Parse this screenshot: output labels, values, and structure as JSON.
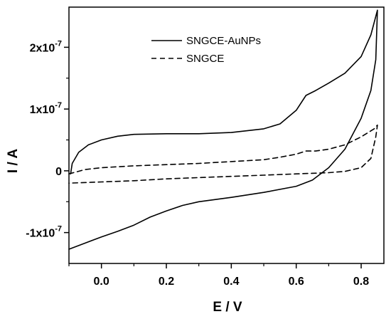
{
  "chart_data": {
    "type": "line",
    "title": "",
    "xlabel": "E / V",
    "ylabel": "I / A",
    "xlim": [
      -0.1,
      0.87
    ],
    "ylim": [
      -1.5e-07,
      2.65e-07
    ],
    "x_ticks": [
      {
        "value": 0.0,
        "label": "0.0"
      },
      {
        "value": 0.2,
        "label": "0.2"
      },
      {
        "value": 0.4,
        "label": "0.4"
      },
      {
        "value": 0.6,
        "label": "0.6"
      },
      {
        "value": 0.8,
        "label": "0.8"
      }
    ],
    "y_ticks": [
      {
        "value": -1e-07,
        "base": "-1x10",
        "exp": "-7"
      },
      {
        "value": 0,
        "base": "0",
        "exp": ""
      },
      {
        "value": 1e-07,
        "base": "1x10",
        "exp": "-7"
      },
      {
        "value": 2e-07,
        "base": "2x10",
        "exp": "-7"
      }
    ],
    "grid": false,
    "legend_position": "top-center",
    "series": [
      {
        "name": "SNGCE-AuNPs",
        "line_style": "solid",
        "color": "#000000",
        "points": [
          [
            -0.095,
            -5e-09
          ],
          [
            -0.09,
            1.2e-08
          ],
          [
            -0.07,
            3e-08
          ],
          [
            -0.04,
            4.2e-08
          ],
          [
            0.0,
            5e-08
          ],
          [
            0.05,
            5.6e-08
          ],
          [
            0.1,
            5.9e-08
          ],
          [
            0.2,
            6e-08
          ],
          [
            0.3,
            6e-08
          ],
          [
            0.4,
            6.2e-08
          ],
          [
            0.5,
            6.8e-08
          ],
          [
            0.55,
            7.6e-08
          ],
          [
            0.6,
            9.8e-08
          ],
          [
            0.63,
            1.22e-07
          ],
          [
            0.66,
            1.3e-07
          ],
          [
            0.7,
            1.42e-07
          ],
          [
            0.75,
            1.58e-07
          ],
          [
            0.8,
            1.85e-07
          ],
          [
            0.83,
            2.2e-07
          ],
          [
            0.85,
            2.6e-07
          ],
          [
            0.845,
            1.8e-07
          ],
          [
            0.83,
            1.3e-07
          ],
          [
            0.8,
            8.5e-08
          ],
          [
            0.75,
            3.5e-08
          ],
          [
            0.7,
            5e-09
          ],
          [
            0.65,
            -1.5e-08
          ],
          [
            0.6,
            -2.5e-08
          ],
          [
            0.5,
            -3.5e-08
          ],
          [
            0.4,
            -4.3e-08
          ],
          [
            0.3,
            -5e-08
          ],
          [
            0.25,
            -5.6e-08
          ],
          [
            0.2,
            -6.5e-08
          ],
          [
            0.15,
            -7.5e-08
          ],
          [
            0.1,
            -8.8e-08
          ],
          [
            0.05,
            -9.8e-08
          ],
          [
            0.0,
            -1.07e-07
          ],
          [
            -0.05,
            -1.17e-07
          ],
          [
            -0.1,
            -1.27e-07
          ]
        ]
      },
      {
        "name": "SNGCE",
        "line_style": "dashed",
        "color": "#000000",
        "points": [
          [
            -0.1,
            -5e-09
          ],
          [
            -0.05,
            2e-09
          ],
          [
            0.0,
            5e-09
          ],
          [
            0.1,
            8e-09
          ],
          [
            0.2,
            1e-08
          ],
          [
            0.3,
            1.2e-08
          ],
          [
            0.4,
            1.5e-08
          ],
          [
            0.5,
            1.8e-08
          ],
          [
            0.55,
            2.2e-08
          ],
          [
            0.6,
            2.7e-08
          ],
          [
            0.63,
            3.2e-08
          ],
          [
            0.66,
            3.2e-08
          ],
          [
            0.7,
            3.5e-08
          ],
          [
            0.75,
            4.2e-08
          ],
          [
            0.8,
            5.5e-08
          ],
          [
            0.84,
            6.8e-08
          ],
          [
            0.85,
            7.4e-08
          ],
          [
            0.845,
            5.5e-08
          ],
          [
            0.83,
            2e-08
          ],
          [
            0.8,
            5e-09
          ],
          [
            0.75,
            -1e-09
          ],
          [
            0.7,
            -3e-09
          ],
          [
            0.6,
            -5e-09
          ],
          [
            0.5,
            -7e-09
          ],
          [
            0.4,
            -9e-09
          ],
          [
            0.3,
            -1.1e-08
          ],
          [
            0.2,
            -1.3e-08
          ],
          [
            0.1,
            -1.6e-08
          ],
          [
            0.0,
            -1.8e-08
          ],
          [
            -0.1,
            -2e-08
          ]
        ]
      }
    ]
  }
}
